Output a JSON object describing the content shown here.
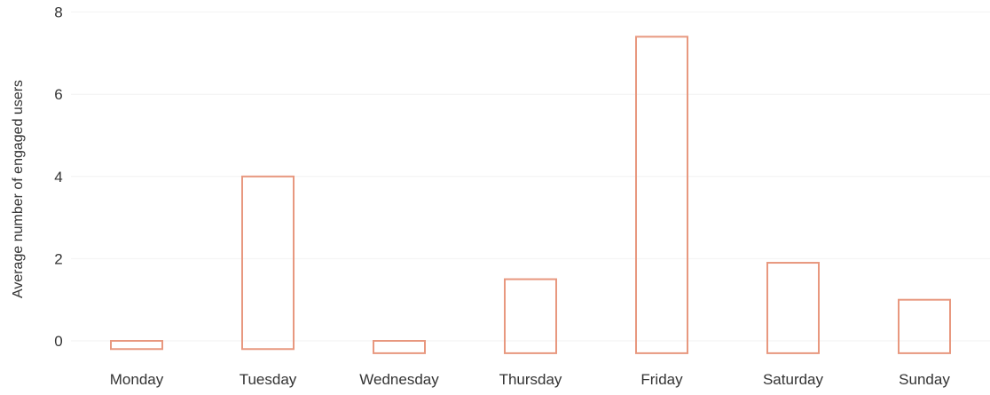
{
  "chart_data": {
    "type": "bar",
    "title": "",
    "xlabel": "",
    "ylabel": "Average number of engaged users",
    "categories": [
      "Monday",
      "Tuesday",
      "Wednesday",
      "Thursday",
      "Friday",
      "Saturday",
      "Sunday"
    ],
    "series": [
      {
        "values": [
          -0.2,
          4.0,
          0.0,
          1.5,
          7.4,
          1.9,
          1.0
        ],
        "base": [
          0.0,
          -0.2,
          -0.3,
          -0.3,
          -0.3,
          -0.3,
          -0.3
        ]
      }
    ],
    "ylim": [
      -0.4,
      8
    ],
    "yticks": [
      0,
      2,
      4,
      6,
      8
    ],
    "grid": true,
    "bar_style": "outline",
    "bar_color": "#e8987f",
    "legend": "none"
  }
}
